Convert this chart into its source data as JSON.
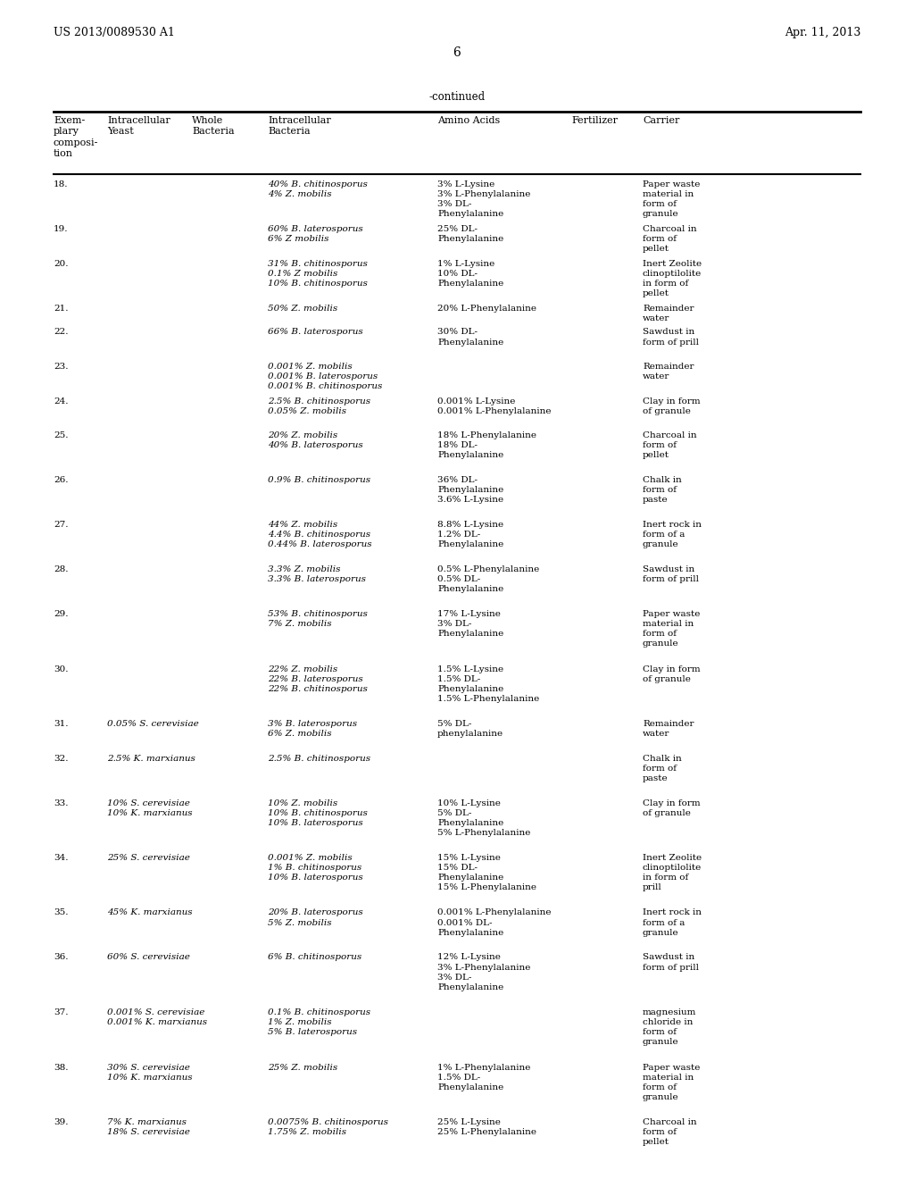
{
  "header_left": "US 2013/0089530 A1",
  "header_right": "Apr. 11, 2013",
  "page_number": "6",
  "continued_label": "-continued",
  "col_headers": [
    "Exem-\nplary\ncomposi-\ntion",
    "Intracellular\nYeast",
    "Whole\nBacteria",
    "Intracellular\nBacteria",
    "Amino Acids",
    "Fertilizer",
    "Carrier"
  ],
  "rows": [
    {
      "num": "18.",
      "yeast": "",
      "whole_bact": "",
      "intra_bact": "40% B. chitinosporus\n4% Z. mobilis",
      "amino": "3% L-Lysine\n3% L-Phenylalanine\n3% DL-\nPhenylalanine",
      "fert": "",
      "carrier": "Paper waste\nmaterial in\nform of\ngranule"
    },
    {
      "num": "19.",
      "yeast": "",
      "whole_bact": "",
      "intra_bact": "60% B. laterosporus\n6% Z mobilis",
      "amino": "25% DL-\nPhenylalanine",
      "fert": "",
      "carrier": "Charcoal in\nform of\npellet"
    },
    {
      "num": "20.",
      "yeast": "",
      "whole_bact": "",
      "intra_bact": "31% B. chitinosporus\n0.1% Z mobilis\n10% B. chitinosporus",
      "amino": "1% L-Lysine\n10% DL-\nPhenylalanine",
      "fert": "",
      "carrier": "Inert Zeolite\nclinoptilolite\nin form of\npellet"
    },
    {
      "num": "21.",
      "yeast": "",
      "whole_bact": "",
      "intra_bact": "50% Z. mobilis",
      "amino": "20% L-Phenylalanine",
      "fert": "",
      "carrier": "Remainder\nwater"
    },
    {
      "num": "22.",
      "yeast": "",
      "whole_bact": "",
      "intra_bact": "66% B. laterosporus",
      "amino": "30% DL-\nPhenylalanine",
      "fert": "",
      "carrier": "Sawdust in\nform of prill"
    },
    {
      "num": "23.",
      "yeast": "",
      "whole_bact": "",
      "intra_bact": "0.001% Z. mobilis\n0.001% B. laterosporus\n0.001% B. chitinosporus",
      "amino": "",
      "fert": "",
      "carrier": "Remainder\nwater"
    },
    {
      "num": "24.",
      "yeast": "",
      "whole_bact": "",
      "intra_bact": "2.5% B. chitinosporus\n0.05% Z. mobilis",
      "amino": "0.001% L-Lysine\n0.001% L-Phenylalanine",
      "fert": "",
      "carrier": "Clay in form\nof granule"
    },
    {
      "num": "25.",
      "yeast": "",
      "whole_bact": "",
      "intra_bact": "20% Z. mobilis\n40% B. laterosporus",
      "amino": "18% L-Phenylalanine\n18% DL-\nPhenylalanine",
      "fert": "",
      "carrier": "Charcoal in\nform of\npellet"
    },
    {
      "num": "26.",
      "yeast": "",
      "whole_bact": "",
      "intra_bact": "0.9% B. chitinosporus",
      "amino": "36% DL-\nPhenylalanine\n3.6% L-Lysine",
      "fert": "",
      "carrier": "Chalk in\nform of\npaste"
    },
    {
      "num": "27.",
      "yeast": "",
      "whole_bact": "",
      "intra_bact": "44% Z. mobilis\n4.4% B. chitinosporus\n0.44% B. laterosporus",
      "amino": "8.8% L-Lysine\n1.2% DL-\nPhenylalanine",
      "fert": "",
      "carrier": "Inert rock in\nform of a\ngranule"
    },
    {
      "num": "28.",
      "yeast": "",
      "whole_bact": "",
      "intra_bact": "3.3% Z. mobilis\n3.3% B. laterosporus",
      "amino": "0.5% L-Phenylalanine\n0.5% DL-\nPhenylalanine",
      "fert": "",
      "carrier": "Sawdust in\nform of prill"
    },
    {
      "num": "29.",
      "yeast": "",
      "whole_bact": "",
      "intra_bact": "53% B. chitinosporus\n7% Z. mobilis",
      "amino": "17% L-Lysine\n3% DL-\nPhenylalanine",
      "fert": "",
      "carrier": "Paper waste\nmaterial in\nform of\ngranule"
    },
    {
      "num": "30.",
      "yeast": "",
      "whole_bact": "",
      "intra_bact": "22% Z. mobilis\n22% B. laterosporus\n22% B. chitinosporus",
      "amino": "1.5% L-Lysine\n1.5% DL-\nPhenylalanine\n1.5% L-Phenylalanine",
      "fert": "",
      "carrier": "Clay in form\nof granule"
    },
    {
      "num": "31.",
      "yeast": "0.05% S. cerevisiae",
      "whole_bact": "",
      "intra_bact": "3% B. laterosporus\n6% Z. mobilis",
      "amino": "5% DL-\nphenylalanine",
      "fert": "",
      "carrier": "Remainder\nwater"
    },
    {
      "num": "32.",
      "yeast": "2.5% K. marxianus",
      "whole_bact": "",
      "intra_bact": "2.5% B. chitinosporus",
      "amino": "",
      "fert": "",
      "carrier": "Chalk in\nform of\npaste"
    },
    {
      "num": "33.",
      "yeast": "10% S. cerevisiae\n10% K. marxianus",
      "whole_bact": "",
      "intra_bact": "10% Z. mobilis\n10% B. chitinosporus\n10% B. laterosporus",
      "amino": "10% L-Lysine\n5% DL-\nPhenylalanine\n5% L-Phenylalanine",
      "fert": "",
      "carrier": "Clay in form\nof granule"
    },
    {
      "num": "34.",
      "yeast": "25% S. cerevisiae",
      "whole_bact": "",
      "intra_bact": "0.001% Z. mobilis\n1% B. chitinosporus\n10% B. laterosporus",
      "amino": "15% L-Lysine\n15% DL-\nPhenylalanine\n15% L-Phenylalanine",
      "fert": "",
      "carrier": "Inert Zeolite\nclinoptilolite\nin form of\nprill"
    },
    {
      "num": "35.",
      "yeast": "45% K. marxianus",
      "whole_bact": "",
      "intra_bact": "20% B. laterosporus\n5% Z. mobilis",
      "amino": "0.001% L-Phenylalanine\n0.001% DL-\nPhenylalanine",
      "fert": "",
      "carrier": "Inert rock in\nform of a\ngranule"
    },
    {
      "num": "36.",
      "yeast": "60% S. cerevisiae",
      "whole_bact": "",
      "intra_bact": "6% B. chitinosporus",
      "amino": "12% L-Lysine\n3% L-Phenylalanine\n3% DL-\nPhenylalanine",
      "fert": "",
      "carrier": "Sawdust in\nform of prill"
    },
    {
      "num": "37.",
      "yeast": "0.001% S. cerevisiae\n0.001% K. marxianus",
      "whole_bact": "",
      "intra_bact": "0.1% B. chitinosporus\n1% Z. mobilis\n5% B. laterosporus",
      "amino": "",
      "fert": "",
      "carrier": "magnesium\nchloride in\nform of\ngranule"
    },
    {
      "num": "38.",
      "yeast": "30% S. cerevisiae\n10% K. marxianus",
      "whole_bact": "",
      "intra_bact": "25% Z. mobilis",
      "amino": "1% L-Phenylalanine\n1.5% DL-\nPhenylalanine",
      "fert": "",
      "carrier": "Paper waste\nmaterial in\nform of\ngranule"
    },
    {
      "num": "39.",
      "yeast": "7% K. marxianus\n18% S. cerevisiae",
      "whole_bact": "",
      "intra_bact": "0.0075% B. chitinosporus\n1.75% Z. mobilis",
      "amino": "25% L-Lysine\n25% L-Phenylalanine",
      "fert": "",
      "carrier": "Charcoal in\nform of\npellet"
    }
  ]
}
